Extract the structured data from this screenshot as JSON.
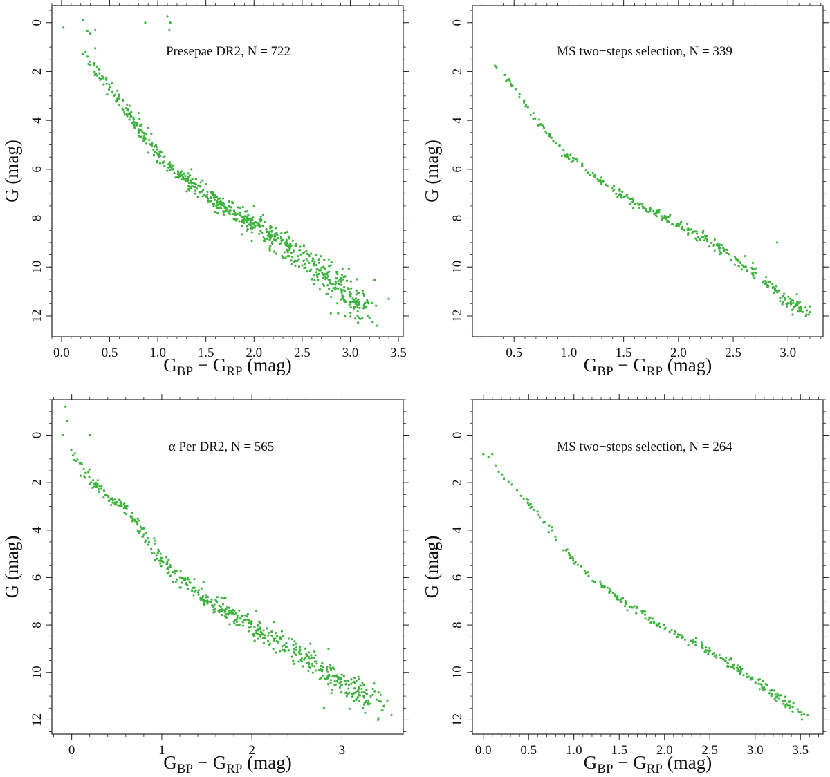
{
  "point_color": "#3cb33c",
  "chart_data": [
    {
      "type": "scatter",
      "annotation": "Presepae DR2, N = 722",
      "xlabel": {
        "main": "G",
        "sub1": "BP",
        "mid": " − G",
        "sub2": "RP",
        "unit": " (mag)"
      },
      "ylabel": "G (mag)",
      "xlim": [
        -0.1,
        3.55
      ],
      "ylim": [
        12.85,
        -0.7
      ],
      "yreversed": true,
      "xticks": [
        0.0,
        0.5,
        1.0,
        1.5,
        2.0,
        2.5,
        3.0,
        3.5
      ],
      "xtick_labels": [
        "0.0",
        "0.5",
        "1.0",
        "1.5",
        "2.0",
        "2.5",
        "3.0",
        "3.5"
      ],
      "yticks": [
        0,
        2,
        4,
        6,
        8,
        10,
        12
      ],
      "ytick_labels": [
        "0",
        "2",
        "4",
        "6",
        "8",
        "10",
        "12"
      ],
      "n_points": 722,
      "sequence": [
        [
          0.18,
          1.0
        ],
        [
          0.3,
          1.8
        ],
        [
          0.45,
          2.4
        ],
        [
          0.6,
          3.2
        ],
        [
          0.8,
          4.3
        ],
        [
          1.0,
          5.4
        ],
        [
          1.2,
          6.2
        ],
        [
          1.5,
          7.0
        ],
        [
          1.8,
          7.8
        ],
        [
          2.1,
          8.5
        ],
        [
          2.4,
          9.3
        ],
        [
          2.6,
          9.9
        ],
        [
          2.8,
          10.5
        ],
        [
          3.0,
          11.2
        ],
        [
          3.15,
          11.8
        ]
      ],
      "outliers": [
        [
          0.02,
          0.2
        ],
        [
          0.22,
          -0.1
        ],
        [
          0.27,
          0.35
        ],
        [
          0.3,
          0.45
        ],
        [
          0.35,
          0.3
        ],
        [
          0.87,
          0.0
        ],
        [
          1.1,
          -0.25
        ],
        [
          1.12,
          0.3
        ],
        [
          1.13,
          0.0
        ],
        [
          0.8,
          3.7
        ],
        [
          0.9,
          4.3
        ],
        [
          1.35,
          6.0
        ],
        [
          2.0,
          7.5
        ],
        [
          3.4,
          11.3
        ],
        [
          3.28,
          12.4
        ],
        [
          0.35,
          1.05
        ],
        [
          0.25,
          1.2
        ]
      ]
    },
    {
      "type": "scatter",
      "annotation": "MS two−steps selection, N = 339",
      "xlabel": {
        "main": "G",
        "sub1": "BP",
        "mid": " − G",
        "sub2": "RP",
        "unit": " (mag)"
      },
      "ylabel": "G (mag)",
      "xlim": [
        0.12,
        3.32
      ],
      "ylim": [
        12.85,
        -0.7
      ],
      "yreversed": true,
      "xticks": [
        0.5,
        1.0,
        1.5,
        2.0,
        2.5,
        3.0
      ],
      "xtick_labels": [
        "0.5",
        "1.0",
        "1.5",
        "2.0",
        "2.5",
        "3.0"
      ],
      "yticks": [
        0,
        2,
        4,
        6,
        8,
        10,
        12
      ],
      "ytick_labels": [
        "0",
        "2",
        "4",
        "6",
        "8",
        "10",
        "12"
      ],
      "n_points": 339,
      "sequence": [
        [
          0.25,
          1.3
        ],
        [
          0.45,
          2.3
        ],
        [
          0.6,
          3.3
        ],
        [
          0.8,
          4.5
        ],
        [
          1.0,
          5.5
        ],
        [
          1.2,
          6.2
        ],
        [
          1.5,
          7.1
        ],
        [
          1.8,
          7.8
        ],
        [
          2.1,
          8.5
        ],
        [
          2.4,
          9.3
        ],
        [
          2.6,
          9.9
        ],
        [
          2.8,
          10.6
        ],
        [
          3.0,
          11.5
        ],
        [
          3.2,
          11.8
        ]
      ],
      "outliers": [
        [
          2.9,
          9.0
        ],
        [
          3.2,
          11.85
        ]
      ]
    },
    {
      "type": "scatter",
      "annotation": "α Per DR2, N = 565",
      "xlabel": {
        "main": "G",
        "sub1": "BP",
        "mid": " − G",
        "sub2": "RP",
        "unit": " (mag)"
      },
      "ylabel": "G (mag)",
      "xlim": [
        -0.22,
        3.68
      ],
      "ylim": [
        12.6,
        -1.5
      ],
      "yreversed": true,
      "xticks": [
        0,
        1,
        2,
        3
      ],
      "xtick_labels": [
        "0",
        "1",
        "2",
        "3"
      ],
      "yticks": [
        0,
        2,
        4,
        6,
        8,
        10,
        12
      ],
      "ytick_labels": [
        "0",
        "2",
        "4",
        "6",
        "8",
        "10",
        "12"
      ],
      "n_points": 565,
      "sequence": [
        [
          0.0,
          0.6
        ],
        [
          0.1,
          1.3
        ],
        [
          0.2,
          1.9
        ],
        [
          0.4,
          2.6
        ],
        [
          0.6,
          3.1
        ],
        [
          0.8,
          4.2
        ],
        [
          1.0,
          5.3
        ],
        [
          1.2,
          6.0
        ],
        [
          1.5,
          6.9
        ],
        [
          1.8,
          7.6
        ],
        [
          2.1,
          8.3
        ],
        [
          2.4,
          8.9
        ],
        [
          2.7,
          9.6
        ],
        [
          3.0,
          10.5
        ],
        [
          3.25,
          11.0
        ],
        [
          3.45,
          11.5
        ]
      ],
      "outliers": [
        [
          -0.07,
          -1.2
        ],
        [
          -0.05,
          -0.6
        ],
        [
          -0.1,
          0.0
        ],
        [
          0.2,
          0.0
        ],
        [
          2.05,
          7.4
        ],
        [
          2.85,
          9.0
        ],
        [
          2.8,
          11.5
        ],
        [
          3.55,
          11.8
        ],
        [
          3.4,
          12.0
        ]
      ]
    },
    {
      "type": "scatter",
      "annotation": "MS two−steps selection, N = 264",
      "xlabel": {
        "main": "G",
        "sub1": "BP",
        "mid": " − G",
        "sub2": "RP",
        "unit": " (mag)"
      },
      "ylabel": "G (mag)",
      "xlim": [
        -0.12,
        3.75
      ],
      "ylim": [
        12.6,
        -1.5
      ],
      "yreversed": true,
      "xticks": [
        0.0,
        0.5,
        1.0,
        1.5,
        2.0,
        2.5,
        3.0,
        3.5
      ],
      "xtick_labels": [
        "0.0",
        "0.5",
        "1.0",
        "1.5",
        "2.0",
        "2.5",
        "3.0",
        "3.5"
      ],
      "yticks": [
        0,
        2,
        4,
        6,
        8,
        10,
        12
      ],
      "ytick_labels": [
        "0",
        "2",
        "4",
        "6",
        "8",
        "10",
        "12"
      ],
      "n_points": 264,
      "sequence": [
        [
          0.0,
          0.5
        ],
        [
          0.2,
          1.6
        ],
        [
          0.4,
          2.5
        ],
        [
          0.6,
          3.3
        ],
        [
          0.8,
          4.3
        ],
        [
          1.0,
          5.3
        ],
        [
          1.2,
          6.0
        ],
        [
          1.5,
          6.9
        ],
        [
          1.8,
          7.6
        ],
        [
          2.1,
          8.3
        ],
        [
          2.4,
          8.9
        ],
        [
          2.7,
          9.6
        ],
        [
          3.0,
          10.4
        ],
        [
          3.3,
          11.2
        ],
        [
          3.55,
          11.75
        ]
      ],
      "outliers": [
        [
          0.0,
          0.8
        ],
        [
          0.1,
          0.8
        ],
        [
          3.58,
          11.8
        ]
      ]
    }
  ]
}
